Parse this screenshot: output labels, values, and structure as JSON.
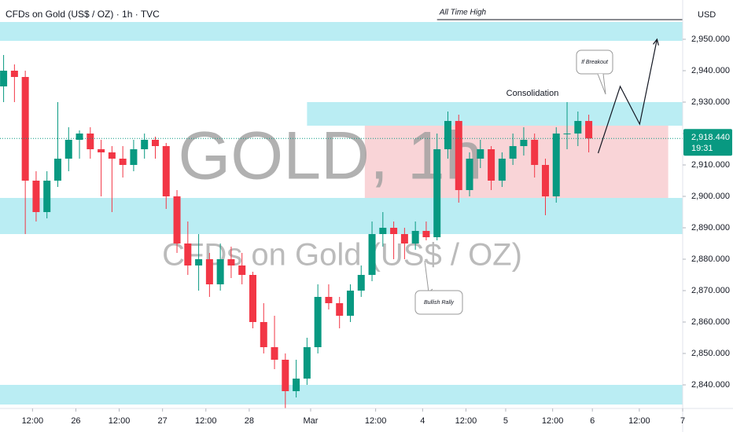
{
  "chart_data": {
    "type": "candlestick",
    "title": "CFDs on Gold (US$ / OZ) · 1h · TVC",
    "watermark": [
      "GOLD, 1h",
      "CFDs on Gold (US$ / OZ)"
    ],
    "currency": "USD",
    "up_color": "#089981",
    "down_color": "#f23645",
    "xlim": [
      -1,
      188
    ],
    "ylim": [
      2832.5,
      2962.5
    ],
    "xticks": [
      {
        "value": 8,
        "label": "12:00"
      },
      {
        "value": 20,
        "label": "26"
      },
      {
        "value": 32,
        "label": "12:00"
      },
      {
        "value": 44,
        "label": "27"
      },
      {
        "value": 56,
        "label": "12:00"
      },
      {
        "value": 68,
        "label": "28"
      },
      {
        "value": 85,
        "label": "Mar"
      },
      {
        "value": 103,
        "label": "12:00"
      },
      {
        "value": 116,
        "label": "4"
      },
      {
        "value": 128,
        "label": "12:00"
      },
      {
        "value": 139,
        "label": "5"
      },
      {
        "value": 152,
        "label": "12:00"
      },
      {
        "value": 163,
        "label": "6"
      },
      {
        "value": 176,
        "label": "12:00"
      },
      {
        "value": 188,
        "label": "7"
      }
    ],
    "yticks": [
      {
        "value": 2840,
        "label": "2,840.000"
      },
      {
        "value": 2850,
        "label": "2,850.000"
      },
      {
        "value": 2860,
        "label": "2,860.000"
      },
      {
        "value": 2870,
        "label": "2,870.000"
      },
      {
        "value": 2880,
        "label": "2,880.000"
      },
      {
        "value": 2890,
        "label": "2,890.000"
      },
      {
        "value": 2900,
        "label": "2,900.000"
      },
      {
        "value": 2910,
        "label": "2,910.000"
      },
      {
        "value": 2920,
        "label": "2,920.000"
      },
      {
        "value": 2930,
        "label": "2,930.000"
      },
      {
        "value": 2940,
        "label": "2,940.000"
      },
      {
        "value": 2950,
        "label": "2,950.000"
      }
    ],
    "ohlc": [
      [
        0,
        2935,
        2945,
        2930,
        2940
      ],
      [
        3,
        2940,
        2942,
        2930,
        2938
      ],
      [
        6,
        2938,
        2940,
        2888,
        2905
      ],
      [
        9,
        2905,
        2908,
        2892,
        2895
      ],
      [
        12,
        2895,
        2908,
        2893,
        2905
      ],
      [
        15,
        2905,
        2930,
        2903,
        2912
      ],
      [
        18,
        2912,
        2922,
        2908,
        2918
      ],
      [
        21,
        2918,
        2921,
        2912,
        2920
      ],
      [
        24,
        2920,
        2922,
        2912,
        2915
      ],
      [
        27,
        2915,
        2918,
        2900,
        2914
      ],
      [
        30,
        2914,
        2916,
        2895,
        2912
      ],
      [
        33,
        2912,
        2916,
        2906,
        2910
      ],
      [
        36,
        2910,
        2918,
        2908,
        2915
      ],
      [
        39,
        2915,
        2920,
        2912,
        2918
      ],
      [
        42,
        2918,
        2919,
        2912,
        2916
      ],
      [
        45,
        2916,
        2917,
        2896,
        2900
      ],
      [
        48,
        2900,
        2902,
        2882,
        2885
      ],
      [
        51,
        2885,
        2892,
        2875,
        2878
      ],
      [
        54,
        2878,
        2888,
        2870,
        2880
      ],
      [
        57,
        2880,
        2882,
        2868,
        2872
      ],
      [
        60,
        2872,
        2885,
        2870,
        2880
      ],
      [
        63,
        2880,
        2884,
        2874,
        2878
      ],
      [
        66,
        2878,
        2882,
        2872,
        2875
      ],
      [
        69,
        2875,
        2876,
        2858,
        2860
      ],
      [
        72,
        2860,
        2866,
        2850,
        2852
      ],
      [
        75,
        2852,
        2862,
        2845,
        2848
      ],
      [
        78,
        2848,
        2850,
        2832.5,
        2838
      ],
      [
        81,
        2838,
        2848,
        2836,
        2842
      ],
      [
        84,
        2842,
        2855,
        2840,
        2852
      ],
      [
        87,
        2852,
        2872,
        2850,
        2868
      ],
      [
        90,
        2868,
        2872,
        2864,
        2866
      ],
      [
        93,
        2866,
        2868,
        2858,
        2862
      ],
      [
        96,
        2862,
        2872,
        2860,
        2870
      ],
      [
        99,
        2870,
        2878,
        2868,
        2875
      ],
      [
        102,
        2875,
        2892,
        2873,
        2888
      ],
      [
        105,
        2888,
        2895,
        2884,
        2890
      ],
      [
        108,
        2890,
        2892,
        2880,
        2888
      ],
      [
        111,
        2888,
        2890,
        2880,
        2885
      ],
      [
        114,
        2885,
        2892,
        2883,
        2889
      ],
      [
        117,
        2889,
        2892,
        2886,
        2887
      ],
      [
        120,
        2887,
        2920,
        2886,
        2915
      ],
      [
        123,
        2915,
        2927,
        2912,
        2924
      ],
      [
        126,
        2924,
        2926,
        2898,
        2902
      ],
      [
        129,
        2902,
        2914,
        2900,
        2912
      ],
      [
        132,
        2912,
        2918,
        2909,
        2915
      ],
      [
        135,
        2915,
        2916,
        2902,
        2905
      ],
      [
        138,
        2905,
        2914,
        2903,
        2912
      ],
      [
        141,
        2912,
        2920,
        2910,
        2916
      ],
      [
        144,
        2916,
        2922,
        2913,
        2918
      ],
      [
        147,
        2918,
        2920,
        2906,
        2910
      ],
      [
        150,
        2910,
        2912,
        2894,
        2900
      ],
      [
        153,
        2900,
        2922,
        2898,
        2920
      ],
      [
        156,
        2920,
        2930,
        2915,
        2920
      ],
      [
        159,
        2920,
        2927,
        2916,
        2924
      ],
      [
        162,
        2924,
        2926,
        2914,
        2918.44
      ]
    ],
    "last_price": {
      "value": 2918.44,
      "label": "2,918.440",
      "countdown": "19:31"
    },
    "zones": [
      {
        "color": "#b2ebf2",
        "x": [
          -1,
          188
        ],
        "y": [
          2949.5,
          2955.5
        ]
      },
      {
        "color": "#b2ebf2",
        "x": [
          84,
          188
        ],
        "y": [
          2922.5,
          2930
        ]
      },
      {
        "color": "#b2ebf2",
        "x": [
          -1,
          188
        ],
        "y": [
          2888,
          2899.5
        ]
      },
      {
        "color": "#b2ebf2",
        "x": [
          -1,
          188
        ],
        "y": [
          2833.75,
          2840
        ]
      },
      {
        "color": "#f7c5ca",
        "x": [
          100,
          184
        ],
        "y": [
          2899.5,
          2922.5
        ]
      }
    ],
    "ath": {
      "label": "All Time High",
      "value": 2956.25,
      "x": [
        120,
        188
      ]
    },
    "consolidation": "Consolidation",
    "callouts": [
      "If Breakout",
      "Bullish Rally"
    ],
    "projection": {
      "x": [
        164.6,
        170.7,
        176.1,
        180.9
      ],
      "y": [
        2913.75,
        2935,
        2923,
        2950
      ]
    }
  }
}
